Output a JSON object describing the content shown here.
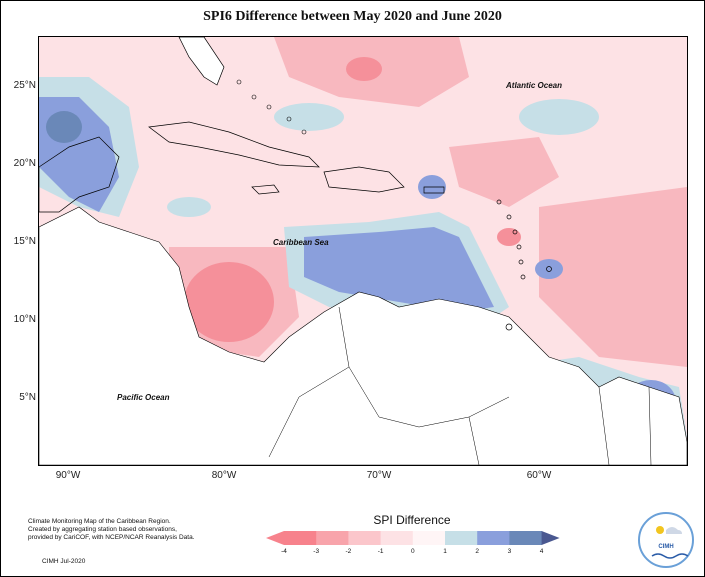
{
  "title": "SPI6 Difference between May 2020 and June 2020",
  "map": {
    "y_axis_labels": [
      "25°N",
      "20°N",
      "15°N",
      "10°N",
      "5°N"
    ],
    "x_axis_labels": [
      "90°W",
      "80°W",
      "70°W",
      "60°W"
    ],
    "place_labels": {
      "atlantic": "Atlantic Ocean",
      "caribbean": "Caribbean Sea",
      "pacific": "Pacific Ocean"
    }
  },
  "legend": {
    "title": "SPI Difference",
    "ticks": [
      "-4",
      "-3",
      "-2",
      "-1",
      "0",
      "1",
      "2",
      "3",
      "4"
    ],
    "colors": [
      "#f7828c",
      "#f8a4ab",
      "#fbc6cb",
      "#fde2e5",
      "#fff5f6",
      "#c6dfe7",
      "#8a9fdc",
      "#6a88b8",
      "#4a5890"
    ]
  },
  "footer": {
    "note_line1": "Climate Monitoring Map of the Caribbean Region.",
    "note_line2": "Created by aggregating station based observations,",
    "note_line3": "provided by CariCOF, with NCEP/NCAR Reanalysis Data.",
    "credit": "CIMH Jul-2020",
    "logo_text": "CIMH"
  }
}
